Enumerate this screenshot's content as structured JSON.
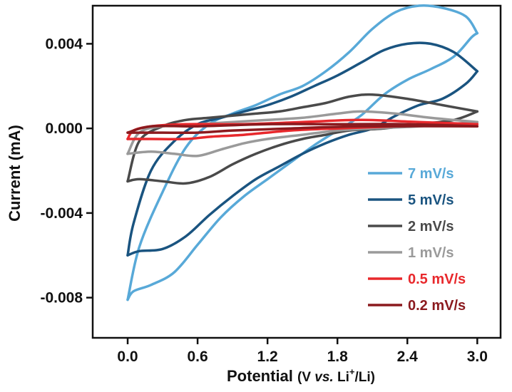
{
  "chart_data": {
    "type": "line",
    "xlabel": {
      "prefix": "Potential ",
      "paren_open": "(V ",
      "italic": "vs.",
      "mid": " Li",
      "sup": "+",
      "suffix": "/Li)"
    },
    "ylabel": "Current (mA)",
    "xlim": [
      -0.3,
      3.2
    ],
    "ylim": [
      -0.0099,
      0.0058
    ],
    "xticks": [
      0.0,
      0.6,
      1.2,
      1.8,
      2.4,
      3.0
    ],
    "xtick_labels": [
      "0.0",
      "0.6",
      "1.2",
      "1.8",
      "2.4",
      "3.0"
    ],
    "yticks": [
      -0.008,
      -0.004,
      0.0,
      0.004
    ],
    "ytick_labels": [
      "-0.008",
      "-0.004",
      "0.000",
      "0.004"
    ],
    "grid": false,
    "legend_position": "lower-right",
    "series": [
      {
        "name": "7 mV/s",
        "color": "#58a9d8",
        "anodic": [
          [
            0.0,
            -0.0081
          ],
          [
            0.05,
            -0.0077
          ],
          [
            0.2,
            -0.0074
          ],
          [
            0.4,
            -0.0068
          ],
          [
            0.6,
            -0.0055
          ],
          [
            0.8,
            -0.0042
          ],
          [
            1.0,
            -0.0032
          ],
          [
            1.2,
            -0.0024
          ],
          [
            1.4,
            -0.0016
          ],
          [
            1.6,
            -0.0008
          ],
          [
            1.8,
            -0.0001
          ],
          [
            2.0,
            0.0006
          ],
          [
            2.2,
            0.0016
          ],
          [
            2.4,
            0.0023
          ],
          [
            2.6,
            0.0028
          ],
          [
            2.8,
            0.0034
          ],
          [
            2.95,
            0.0043
          ],
          [
            3.0,
            0.0045
          ]
        ],
        "cathodic": [
          [
            3.0,
            0.0045
          ],
          [
            2.9,
            0.0053
          ],
          [
            2.7,
            0.0057
          ],
          [
            2.5,
            0.0058
          ],
          [
            2.3,
            0.0055
          ],
          [
            2.1,
            0.0047
          ],
          [
            1.9,
            0.0036
          ],
          [
            1.7,
            0.0027
          ],
          [
            1.5,
            0.002
          ],
          [
            1.3,
            0.0016
          ],
          [
            1.1,
            0.0011
          ],
          [
            0.9,
            0.0007
          ],
          [
            0.7,
            0.0002
          ],
          [
            0.5,
            -0.0009
          ],
          [
            0.3,
            -0.003
          ],
          [
            0.1,
            -0.0056
          ],
          [
            0.0,
            -0.0081
          ]
        ]
      },
      {
        "name": "5 mV/s",
        "color": "#1a5480",
        "anodic": [
          [
            0.0,
            -0.006
          ],
          [
            0.1,
            -0.0058
          ],
          [
            0.3,
            -0.0057
          ],
          [
            0.5,
            -0.0051
          ],
          [
            0.7,
            -0.0041
          ],
          [
            0.9,
            -0.0032
          ],
          [
            1.1,
            -0.0024
          ],
          [
            1.3,
            -0.0018
          ],
          [
            1.5,
            -0.0012
          ],
          [
            1.7,
            -0.0007
          ],
          [
            1.9,
            -0.0003
          ],
          [
            2.1,
            0.0
          ],
          [
            2.3,
            0.0006
          ],
          [
            2.5,
            0.0011
          ],
          [
            2.7,
            0.0014
          ],
          [
            2.9,
            0.0021
          ],
          [
            3.0,
            0.0027
          ]
        ],
        "cathodic": [
          [
            3.0,
            0.0027
          ],
          [
            2.8,
            0.0036
          ],
          [
            2.6,
            0.004
          ],
          [
            2.4,
            0.004
          ],
          [
            2.2,
            0.0037
          ],
          [
            2.0,
            0.0031
          ],
          [
            1.8,
            0.0025
          ],
          [
            1.6,
            0.002
          ],
          [
            1.4,
            0.0015
          ],
          [
            1.2,
            0.0011
          ],
          [
            1.0,
            0.0008
          ],
          [
            0.8,
            0.0005
          ],
          [
            0.6,
            0.0002
          ],
          [
            0.4,
            -0.0006
          ],
          [
            0.2,
            -0.002
          ],
          [
            0.05,
            -0.0045
          ],
          [
            0.0,
            -0.006
          ]
        ]
      },
      {
        "name": "2 mV/s",
        "color": "#4a4a4a",
        "anodic": [
          [
            0.0,
            -0.0025
          ],
          [
            0.1,
            -0.0024
          ],
          [
            0.3,
            -0.0025
          ],
          [
            0.5,
            -0.0026
          ],
          [
            0.7,
            -0.0023
          ],
          [
            0.9,
            -0.0017
          ],
          [
            1.1,
            -0.0012
          ],
          [
            1.3,
            -0.0008
          ],
          [
            1.5,
            -0.0005
          ],
          [
            1.7,
            -0.0003
          ],
          [
            1.9,
            -0.0001
          ],
          [
            2.2,
            0.0
          ],
          [
            2.5,
            0.0002
          ],
          [
            2.8,
            0.0004
          ],
          [
            3.0,
            0.0008
          ]
        ],
        "cathodic": [
          [
            3.0,
            0.0008
          ],
          [
            2.7,
            0.0011
          ],
          [
            2.4,
            0.0014
          ],
          [
            2.1,
            0.0016
          ],
          [
            1.9,
            0.0015
          ],
          [
            1.7,
            0.0012
          ],
          [
            1.5,
            0.001
          ],
          [
            1.3,
            0.0008
          ],
          [
            1.1,
            0.0007
          ],
          [
            0.9,
            0.0006
          ],
          [
            0.7,
            0.0005
          ],
          [
            0.5,
            0.0004
          ],
          [
            0.3,
            0.0001
          ],
          [
            0.1,
            -0.0006
          ],
          [
            0.0,
            -0.0025
          ]
        ]
      },
      {
        "name": "1 mV/s",
        "color": "#9a9a9a",
        "anodic": [
          [
            0.0,
            -0.0012
          ],
          [
            0.2,
            -0.0011
          ],
          [
            0.4,
            -0.0012
          ],
          [
            0.6,
            -0.0013
          ],
          [
            0.8,
            -0.001
          ],
          [
            1.0,
            -0.0007
          ],
          [
            1.2,
            -0.0005
          ],
          [
            1.5,
            -0.0003
          ],
          [
            1.8,
            -0.0001
          ],
          [
            2.1,
            0.0
          ],
          [
            2.5,
            0.0001
          ],
          [
            3.0,
            0.0003
          ]
        ],
        "cathodic": [
          [
            3.0,
            0.0003
          ],
          [
            2.6,
            0.0005
          ],
          [
            2.3,
            0.0007
          ],
          [
            2.0,
            0.0008
          ],
          [
            1.8,
            0.0007
          ],
          [
            1.5,
            0.0005
          ],
          [
            1.2,
            0.0004
          ],
          [
            0.9,
            0.0003
          ],
          [
            0.6,
            0.0002
          ],
          [
            0.3,
            0.0001
          ],
          [
            0.1,
            -0.0002
          ],
          [
            0.0,
            -0.0012
          ]
        ]
      },
      {
        "name": "0.5 mV/s",
        "color": "#e8282c",
        "anodic": [
          [
            0.0,
            -0.0005
          ],
          [
            0.2,
            -0.0005
          ],
          [
            0.5,
            -0.0005
          ],
          [
            0.7,
            -0.0004
          ],
          [
            1.0,
            -0.0003
          ],
          [
            1.4,
            -0.0001
          ],
          [
            1.8,
            0.0
          ],
          [
            2.3,
            0.0001
          ],
          [
            3.0,
            0.0002
          ]
        ],
        "cathodic": [
          [
            3.0,
            0.0002
          ],
          [
            2.5,
            0.0003
          ],
          [
            2.0,
            0.0004
          ],
          [
            1.5,
            0.0003
          ],
          [
            1.0,
            0.0002
          ],
          [
            0.5,
            0.0002
          ],
          [
            0.2,
            0.0001
          ],
          [
            0.05,
            -0.0001
          ],
          [
            0.0,
            -0.0005
          ]
        ]
      },
      {
        "name": "0.2 mV/s",
        "color": "#8b1a1e",
        "anodic": [
          [
            0.0,
            -0.0002
          ],
          [
            0.3,
            -0.0002
          ],
          [
            0.6,
            -0.0002
          ],
          [
            0.9,
            -0.0001
          ],
          [
            1.4,
            0.0
          ],
          [
            2.0,
            0.0001
          ],
          [
            3.0,
            0.0001
          ]
        ],
        "cathodic": [
          [
            3.0,
            0.0001
          ],
          [
            2.4,
            0.0002
          ],
          [
            1.8,
            0.0002
          ],
          [
            1.2,
            0.0002
          ],
          [
            0.6,
            0.0001
          ],
          [
            0.2,
            0.0001
          ],
          [
            0.0,
            -0.0002
          ]
        ]
      }
    ]
  }
}
